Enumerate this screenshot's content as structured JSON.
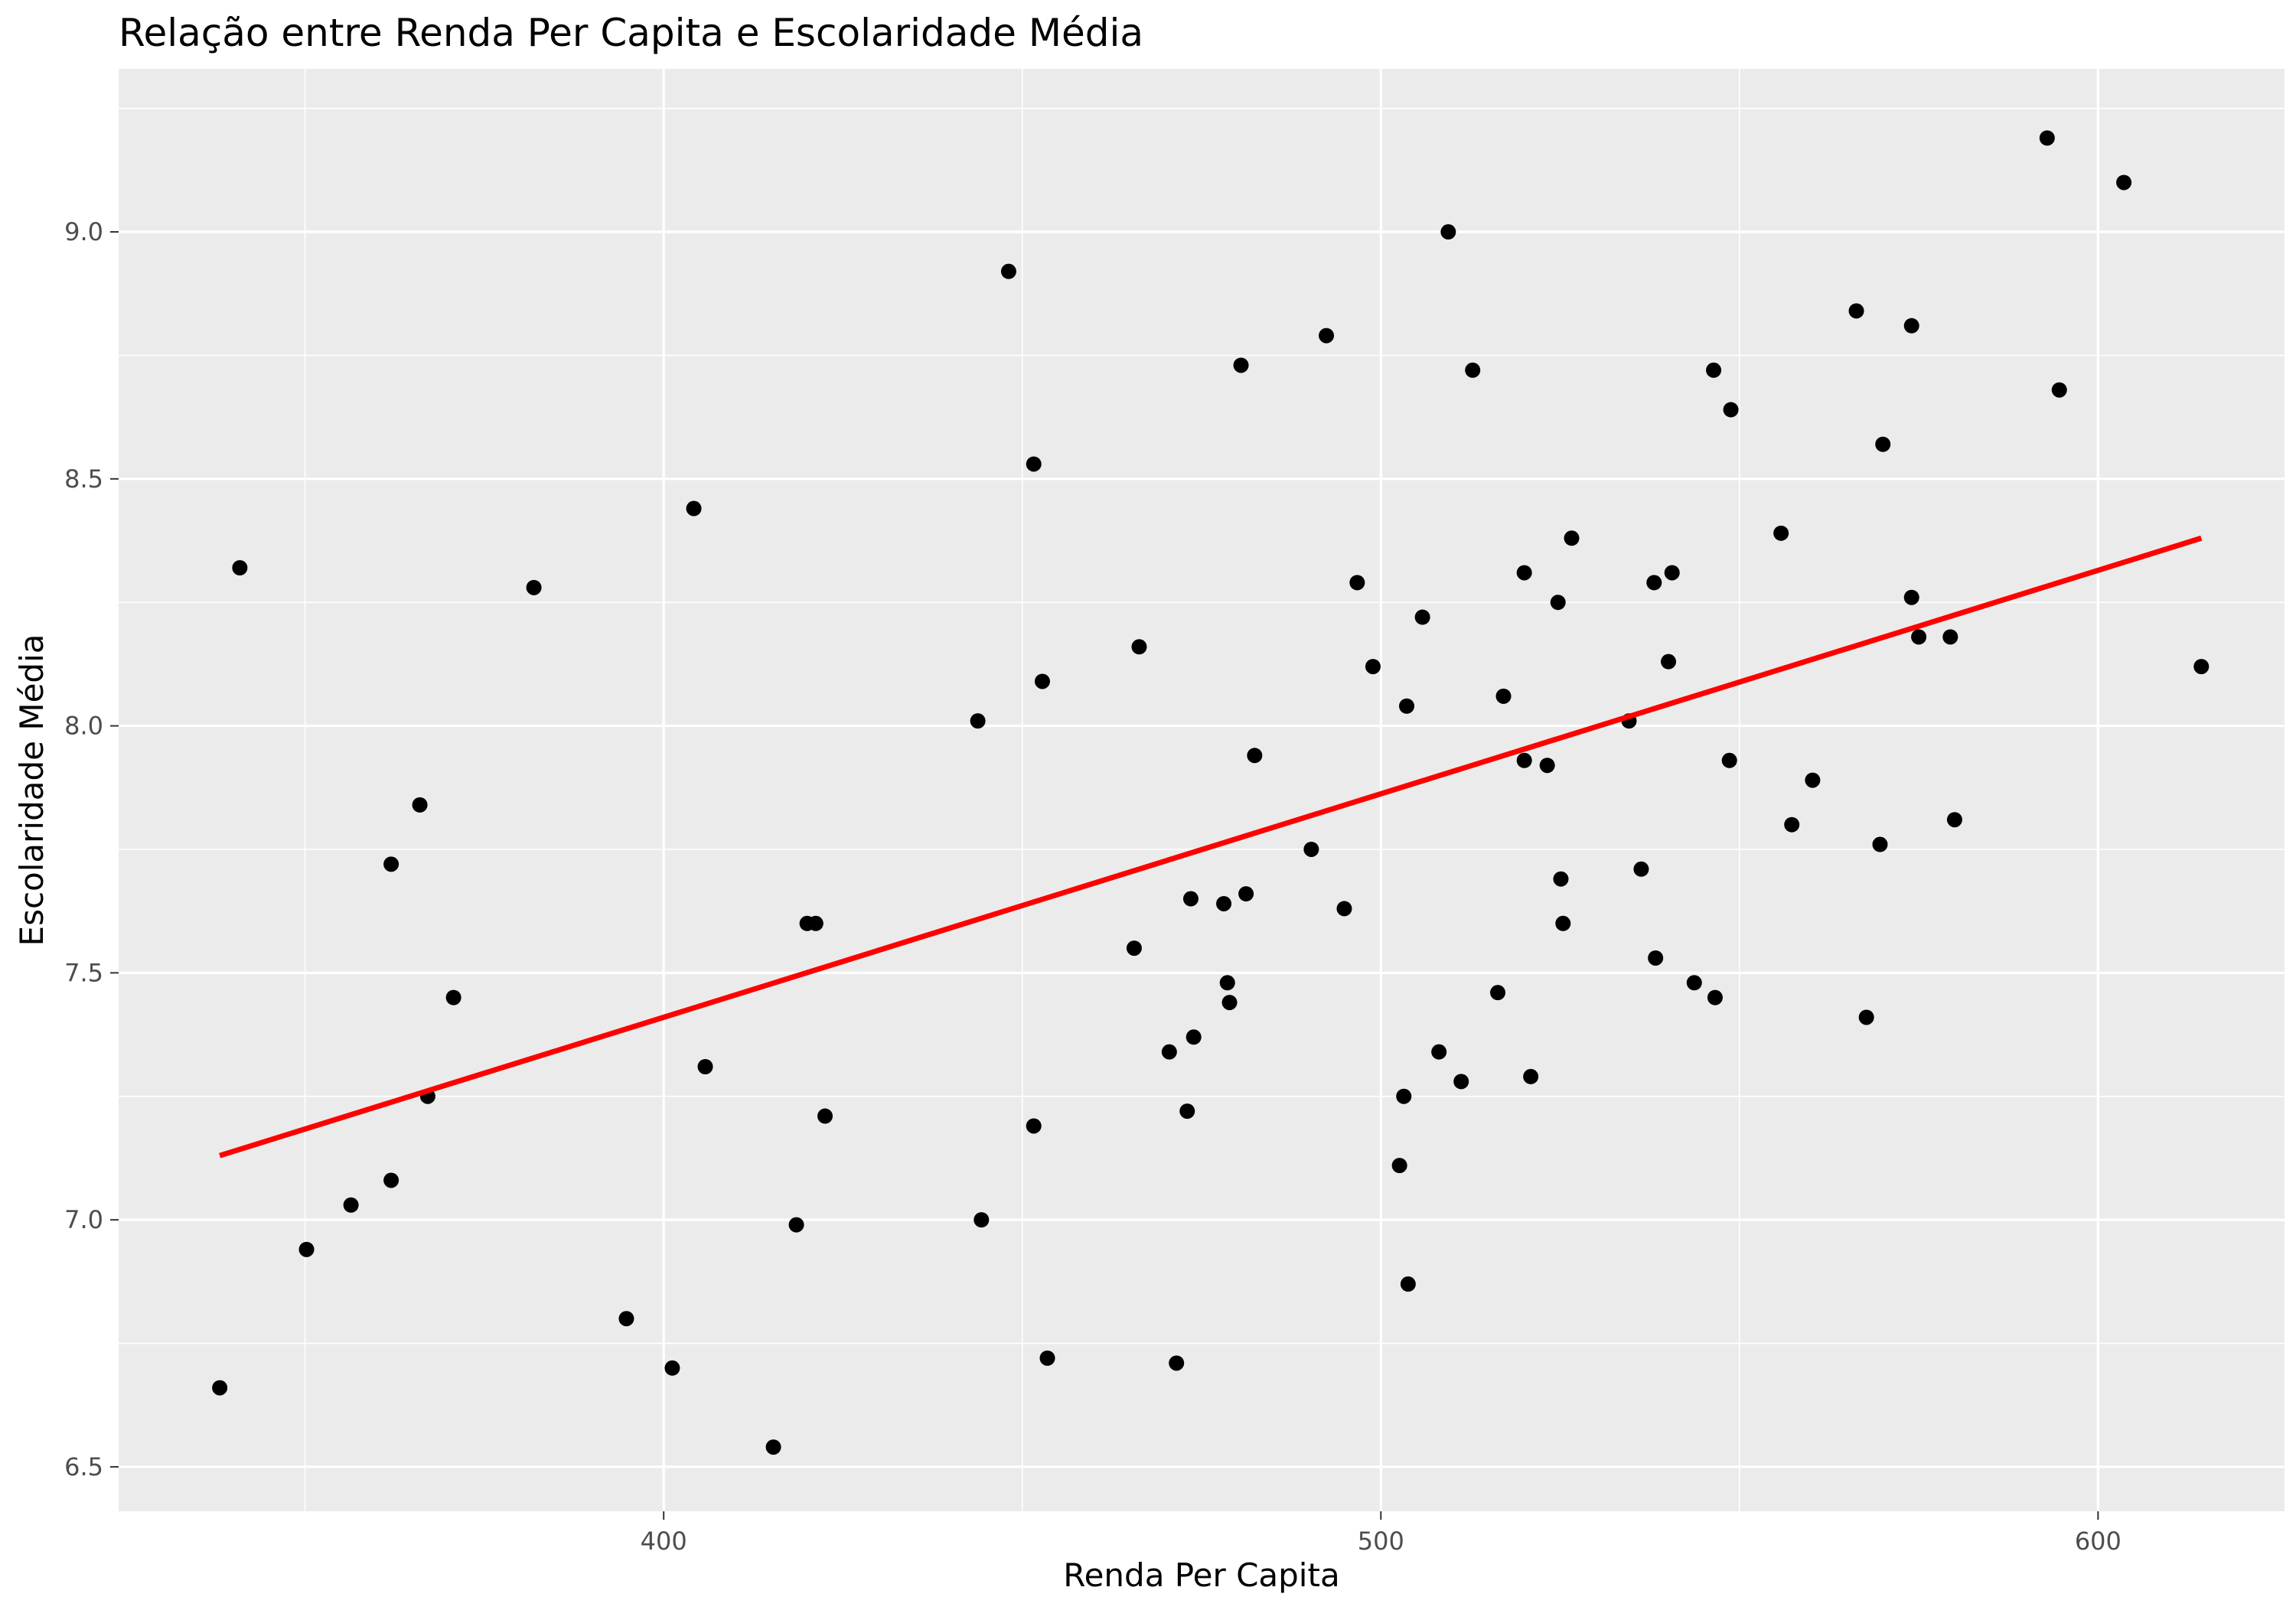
{
  "chart_data": {
    "type": "scatter",
    "title": "Relação entre Renda Per Capita e Escolaridade Média",
    "xlabel": "Renda Per Capita",
    "ylabel": "Escolaridade Média",
    "xlim": [
      324,
      626
    ],
    "ylim": [
      6.41,
      9.33
    ],
    "x_ticks": [
      400,
      500,
      600
    ],
    "y_ticks": [
      6.5,
      7.0,
      7.5,
      8.0,
      8.5,
      9.0
    ],
    "x_tick_labels": [
      "400",
      "500",
      "600"
    ],
    "y_tick_labels": [
      "6.5",
      "7.0",
      "7.5",
      "8.0",
      "8.5",
      "9.0"
    ],
    "grid": true,
    "background": "#ebebeb",
    "point_color": "#000000",
    "trend_color": "#ff0000",
    "trend_line": {
      "x": [
        338.1,
        614.4
      ],
      "y": [
        7.13,
        8.38
      ]
    },
    "points": [
      {
        "x": 338.1,
        "y": 6.66
      },
      {
        "x": 340.9,
        "y": 8.32
      },
      {
        "x": 350.2,
        "y": 6.94
      },
      {
        "x": 356.4,
        "y": 7.03
      },
      {
        "x": 362.0,
        "y": 7.72
      },
      {
        "x": 362.0,
        "y": 7.08
      },
      {
        "x": 366.0,
        "y": 7.84
      },
      {
        "x": 367.1,
        "y": 7.25
      },
      {
        "x": 370.7,
        "y": 7.45
      },
      {
        "x": 381.9,
        "y": 8.28
      },
      {
        "x": 394.8,
        "y": 6.8
      },
      {
        "x": 401.2,
        "y": 6.7
      },
      {
        "x": 404.2,
        "y": 8.44
      },
      {
        "x": 405.8,
        "y": 7.31
      },
      {
        "x": 415.3,
        "y": 6.54
      },
      {
        "x": 418.5,
        "y": 6.99
      },
      {
        "x": 420.0,
        "y": 7.6
      },
      {
        "x": 421.2,
        "y": 7.6
      },
      {
        "x": 422.5,
        "y": 7.21
      },
      {
        "x": 443.8,
        "y": 8.01
      },
      {
        "x": 444.3,
        "y": 7.0
      },
      {
        "x": 448.1,
        "y": 8.92
      },
      {
        "x": 451.6,
        "y": 8.53
      },
      {
        "x": 451.6,
        "y": 7.19
      },
      {
        "x": 452.8,
        "y": 8.09
      },
      {
        "x": 453.5,
        "y": 6.72
      },
      {
        "x": 465.6,
        "y": 7.55
      },
      {
        "x": 466.3,
        "y": 8.16
      },
      {
        "x": 470.5,
        "y": 7.34
      },
      {
        "x": 471.5,
        "y": 6.71
      },
      {
        "x": 473.0,
        "y": 7.22
      },
      {
        "x": 473.5,
        "y": 7.65
      },
      {
        "x": 473.9,
        "y": 7.37
      },
      {
        "x": 478.1,
        "y": 7.64
      },
      {
        "x": 478.6,
        "y": 7.48
      },
      {
        "x": 478.9,
        "y": 7.44
      },
      {
        "x": 480.5,
        "y": 8.73
      },
      {
        "x": 481.2,
        "y": 7.66
      },
      {
        "x": 482.4,
        "y": 7.94
      },
      {
        "x": 490.3,
        "y": 7.75
      },
      {
        "x": 492.4,
        "y": 8.79
      },
      {
        "x": 494.9,
        "y": 7.63
      },
      {
        "x": 496.7,
        "y": 8.29
      },
      {
        "x": 498.9,
        "y": 8.12
      },
      {
        "x": 502.6,
        "y": 7.11
      },
      {
        "x": 503.2,
        "y": 7.25
      },
      {
        "x": 503.6,
        "y": 8.04
      },
      {
        "x": 503.8,
        "y": 6.87
      },
      {
        "x": 505.8,
        "y": 8.22
      },
      {
        "x": 508.1,
        "y": 7.34
      },
      {
        "x": 509.4,
        "y": 9.0
      },
      {
        "x": 511.2,
        "y": 7.28
      },
      {
        "x": 512.8,
        "y": 8.72
      },
      {
        "x": 516.3,
        "y": 7.46
      },
      {
        "x": 517.1,
        "y": 8.06
      },
      {
        "x": 520.0,
        "y": 7.93
      },
      {
        "x": 520.0,
        "y": 8.31
      },
      {
        "x": 520.9,
        "y": 7.29
      },
      {
        "x": 523.2,
        "y": 7.92
      },
      {
        "x": 524.7,
        "y": 8.25
      },
      {
        "x": 525.1,
        "y": 7.69
      },
      {
        "x": 525.4,
        "y": 7.6
      },
      {
        "x": 526.6,
        "y": 8.38
      },
      {
        "x": 534.6,
        "y": 8.01
      },
      {
        "x": 536.3,
        "y": 7.71
      },
      {
        "x": 538.1,
        "y": 8.29
      },
      {
        "x": 538.3,
        "y": 7.53
      },
      {
        "x": 540.1,
        "y": 8.13
      },
      {
        "x": 540.6,
        "y": 8.31
      },
      {
        "x": 543.7,
        "y": 7.48
      },
      {
        "x": 546.4,
        "y": 8.72
      },
      {
        "x": 546.6,
        "y": 7.45
      },
      {
        "x": 548.6,
        "y": 7.93
      },
      {
        "x": 548.8,
        "y": 8.64
      },
      {
        "x": 555.8,
        "y": 8.39
      },
      {
        "x": 557.3,
        "y": 7.8
      },
      {
        "x": 560.2,
        "y": 7.89
      },
      {
        "x": 566.3,
        "y": 8.84
      },
      {
        "x": 567.7,
        "y": 7.41
      },
      {
        "x": 569.6,
        "y": 7.76
      },
      {
        "x": 570.0,
        "y": 8.57
      },
      {
        "x": 574.0,
        "y": 8.81
      },
      {
        "x": 574.0,
        "y": 8.26
      },
      {
        "x": 575.0,
        "y": 8.18
      },
      {
        "x": 579.4,
        "y": 8.18
      },
      {
        "x": 580.0,
        "y": 7.81
      },
      {
        "x": 592.9,
        "y": 9.19
      },
      {
        "x": 594.6,
        "y": 8.68
      },
      {
        "x": 603.6,
        "y": 9.1
      },
      {
        "x": 614.4,
        "y": 8.12
      }
    ]
  }
}
